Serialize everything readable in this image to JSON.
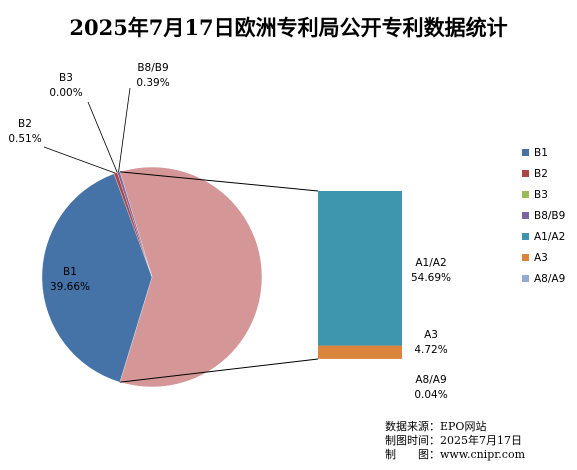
{
  "chart_data": {
    "type": "bar-of-pie",
    "title": "2025年7月17日欧洲专利局公开专利数据统计",
    "pie_slices": [
      {
        "name": "B3",
        "value": 0.0,
        "label": "0.00%",
        "color": "#9bbb59"
      },
      {
        "name": "B8/B9",
        "value": 0.39,
        "label": "0.39%",
        "color": "#8064a2"
      },
      {
        "name": "B1",
        "value": 39.66,
        "label": "39.66%",
        "color": "#4572a7"
      },
      {
        "name": "B2",
        "value": 0.51,
        "label": "0.51%",
        "color": "#aa4643"
      }
    ],
    "other_slice": {
      "value": 59.45,
      "color": "#d49696"
    },
    "bar_segments": [
      {
        "name": "A8/A9",
        "value": 0.04,
        "label": "0.04%",
        "color": "#93a9cf"
      },
      {
        "name": "A3",
        "value": 4.72,
        "label": "4.72%",
        "color": "#db843d"
      },
      {
        "name": "A1/A2",
        "value": 54.69,
        "label": "54.69%",
        "color": "#3d96ae"
      }
    ],
    "legend": [
      {
        "name": "B1",
        "color": "#4572a7"
      },
      {
        "name": "B2",
        "color": "#aa4643"
      },
      {
        "name": "B3",
        "color": "#9bbb59"
      },
      {
        "name": "B8/B9",
        "color": "#8064a2"
      },
      {
        "name": "A1/A2",
        "color": "#3d96ae"
      },
      {
        "name": "A3",
        "color": "#db843d"
      },
      {
        "name": "A8/A9",
        "color": "#93a9cf"
      }
    ],
    "legend_position": "right"
  },
  "source": {
    "line1": "数据来源：EPO网站",
    "line2": "制图时间：2025年7月17日",
    "line3": "制　　图：www.cnipr.com"
  }
}
